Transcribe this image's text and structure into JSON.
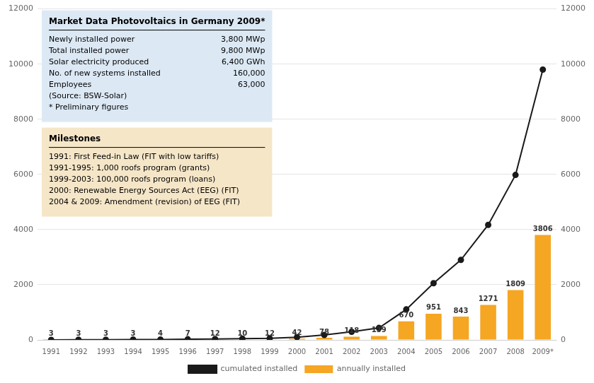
{
  "chart_data": {
    "type": "bar",
    "categories": [
      "1991",
      "1992",
      "1993",
      "1994",
      "1995",
      "1996",
      "1997",
      "1998",
      "1999",
      "2000",
      "2001",
      "2002",
      "2003",
      "2004",
      "2005",
      "2006",
      "2007",
      "2008",
      "2009*"
    ],
    "series": [
      {
        "name": "annually installed",
        "type": "bar",
        "color": "#f5a623",
        "values": [
          3,
          3,
          3,
          3,
          4,
          7,
          12,
          10,
          12,
          42,
          78,
          118,
          139,
          670,
          951,
          843,
          1271,
          1809,
          3806
        ]
      },
      {
        "name": "cumulated installed",
        "type": "line",
        "color": "#1a1a1a",
        "marker": "circle",
        "values": [
          3,
          6,
          9,
          12,
          16,
          23,
          35,
          45,
          57,
          99,
          177,
          295,
          434,
          1105,
          2056,
          2899,
          4170,
          5979,
          9800
        ]
      }
    ],
    "ylim": [
      0,
      12000
    ],
    "yticks": [
      0,
      2000,
      4000,
      6000,
      8000,
      10000,
      12000
    ],
    "y2lim": [
      0,
      12000
    ],
    "y2ticks": [
      0,
      2000,
      4000,
      6000,
      8000,
      10000,
      12000
    ],
    "grid": true,
    "legend": "bottom",
    "data_labels": true,
    "annotations": [
      [
        "Market Data Photovoltaics in Germany 2009*",
        [
          "Newly installed power",
          "3,800 MWp"
        ],
        [
          "Total installed power",
          "9,800 MWp"
        ],
        [
          "Solar electricity produced",
          "6,400 GWh"
        ],
        [
          "No. of new systems installed",
          "160,000"
        ],
        [
          "Employees",
          "63,000"
        ],
        "(Source: BSW-Solar)",
        "* Preliminary figures"
      ],
      [
        "Milestones",
        "1991: First Feed-in Law (FIT with low tariffs)",
        "1991-1995: 1,000 roofs program (grants)",
        "1999-2003: 100,000 roofs program (loans)",
        "2000: Renewable Energy Sources Act (EEG) (FIT)",
        "2004 & 2009: Amendment (revision) of EEG (FIT)"
      ]
    ]
  }
}
